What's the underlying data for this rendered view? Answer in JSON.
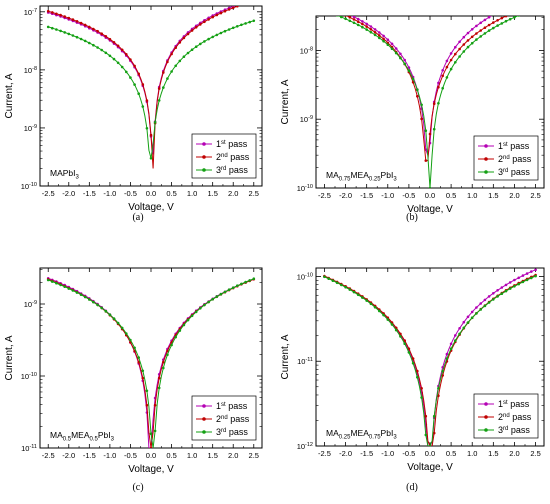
{
  "chart_data": [
    {
      "type": "line",
      "panel_label": "(a)",
      "annotation": {
        "base": "MAPbI",
        "sub": "3"
      },
      "xlabel": "Voltage, V",
      "ylabel": "Current, A",
      "xlim": [
        -2.7,
        2.7
      ],
      "ylim_log10": [
        -10,
        -6.9
      ],
      "log_y": true,
      "x_ticks": [
        "-2.5",
        "-2.0",
        "-1.5",
        "-1.0",
        "-0.5",
        "0.0",
        "0.5",
        "1.0",
        "1.5",
        "2.0",
        "2.5"
      ],
      "y_ticks": [
        {
          "base": "10",
          "exp": "-10"
        },
        {
          "base": "10",
          "exp": "-9"
        },
        {
          "base": "10",
          "exp": "-8"
        },
        {
          "base": "10",
          "exp": "-7"
        }
      ],
      "legend_position": "bottom-right",
      "series": [
        {
          "name": "1st pass",
          "sup": "st",
          "color": "#b400b4",
          "i_neg": 9.5e-08,
          "i_pos": 1.7e-07,
          "v0": 0.05,
          "floor": 3.5e-10
        },
        {
          "name": "2nd pass",
          "sup": "nd",
          "color": "#c00000",
          "i_neg": 1e-07,
          "i_pos": 1.6e-07,
          "v0": 0.05,
          "floor": 2e-10
        },
        {
          "name": "3rd pass",
          "sup": "rd",
          "color": "#13a013",
          "i_neg": 5.5e-08,
          "i_pos": 7e-08,
          "v0": 0.0,
          "floor": 3e-10
        }
      ]
    },
    {
      "type": "line",
      "panel_label": "(b)",
      "annotation": {
        "base": "MA",
        "parts": [
          {
            "t": "0.75",
            "sub": true
          },
          {
            "t": "MEA",
            "sub": false
          },
          {
            "t": "0.25",
            "sub": true
          },
          {
            "t": "PbI",
            "sub": false
          },
          {
            "t": "3",
            "sub": true
          }
        ]
      },
      "xlabel": "Voltage, V",
      "ylabel": "Current, A",
      "xlim": [
        -2.7,
        2.7
      ],
      "ylim_log10": [
        -10,
        -7.5
      ],
      "log_y": true,
      "x_ticks": [
        "-2.5",
        "-2.0",
        "-1.5",
        "-1.0",
        "-0.5",
        "0.0",
        "0.5",
        "1.0",
        "1.5",
        "2.0",
        "2.5"
      ],
      "y_ticks": [
        {
          "base": "10",
          "exp": "-10"
        },
        {
          "base": "10",
          "exp": "-9"
        },
        {
          "base": "10",
          "exp": "-8"
        }
      ],
      "legend_position": "bottom-right",
      "series": [
        {
          "name": "1st pass",
          "sup": "st",
          "color": "#b400b4",
          "i_neg": 4.8e-08,
          "i_pos": 6e-08,
          "v0": -0.05,
          "floor": 3e-10
        },
        {
          "name": "2nd pass",
          "sup": "nd",
          "color": "#c00000",
          "i_neg": 4.5e-08,
          "i_pos": 4.5e-08,
          "v0": -0.08,
          "floor": 2.5e-10
        },
        {
          "name": "3rd pass",
          "sup": "rd",
          "color": "#13a013",
          "i_neg": 3.8e-08,
          "i_pos": 4e-08,
          "v0": 0.0,
          "floor": 1e-10
        }
      ]
    },
    {
      "type": "line",
      "panel_label": "(c)",
      "annotation": {
        "base": "MA",
        "parts": [
          {
            "t": "0.5",
            "sub": true
          },
          {
            "t": "MEA",
            "sub": false
          },
          {
            "t": "0.5",
            "sub": true
          },
          {
            "t": "PbI",
            "sub": false
          },
          {
            "t": "3",
            "sub": true
          }
        ]
      },
      "xlabel": "Voltage, V",
      "ylabel": "Current, A",
      "xlim": [
        -2.7,
        2.7
      ],
      "ylim_log10": [
        -11,
        -8.5
      ],
      "log_y": true,
      "x_ticks": [
        "-2.5",
        "-2.0",
        "-1.5",
        "-1.0",
        "-0.5",
        "0.0",
        "0.5",
        "1.0",
        "1.5",
        "2.0",
        "2.5"
      ],
      "y_ticks": [
        {
          "base": "10",
          "exp": "-11"
        },
        {
          "base": "10",
          "exp": "-10"
        },
        {
          "base": "10",
          "exp": "-9"
        }
      ],
      "legend_position": "bottom-right",
      "series": [
        {
          "name": "1st pass",
          "sup": "st",
          "color": "#b400b4",
          "i_neg": 2.3e-09,
          "i_pos": 2.2e-09,
          "v0": -0.02,
          "floor": 1e-11
        },
        {
          "name": "2nd pass",
          "sup": "nd",
          "color": "#c00000",
          "i_neg": 2.2e-09,
          "i_pos": 2.2e-09,
          "v0": 0.0,
          "floor": 1e-11
        },
        {
          "name": "3rd pass",
          "sup": "rd",
          "color": "#13a013",
          "i_neg": 2.1e-09,
          "i_pos": 2.3e-09,
          "v0": 0.05,
          "floor": 1e-11
        }
      ]
    },
    {
      "type": "line",
      "panel_label": "(d)",
      "annotation": {
        "base": "MA",
        "parts": [
          {
            "t": "0.25",
            "sub": true
          },
          {
            "t": "MEA",
            "sub": false
          },
          {
            "t": "0.75",
            "sub": true
          },
          {
            "t": "PbI",
            "sub": false
          },
          {
            "t": "3",
            "sub": true
          }
        ]
      },
      "xlabel": "Voltage, V",
      "ylabel": "Current, A",
      "xlim": [
        -2.7,
        2.7
      ],
      "ylim_log10": [
        -12,
        -9.9
      ],
      "log_y": true,
      "x_ticks": [
        "-2.5",
        "-2.0",
        "-1.5",
        "-1.0",
        "-0.5",
        "0.0",
        "0.5",
        "1.0",
        "1.5",
        "2.0",
        "2.5"
      ],
      "y_ticks": [
        {
          "base": "10",
          "exp": "-12"
        },
        {
          "base": "10",
          "exp": "-11"
        },
        {
          "base": "10",
          "exp": "-10"
        }
      ],
      "legend_position": "bottom-right",
      "series": [
        {
          "name": "1st pass",
          "sup": "st",
          "color": "#b400b4",
          "i_neg": 1e-10,
          "i_pos": 1.2e-10,
          "v0": 0.0,
          "floor": 1e-12
        },
        {
          "name": "2nd pass",
          "sup": "nd",
          "color": "#c00000",
          "i_neg": 1e-10,
          "i_pos": 1.05e-10,
          "v0": 0.02,
          "floor": 1e-12
        },
        {
          "name": "3rd pass",
          "sup": "rd",
          "color": "#13a013",
          "i_neg": 1e-10,
          "i_pos": 1e-10,
          "v0": -0.02,
          "floor": 1e-12
        }
      ]
    }
  ]
}
